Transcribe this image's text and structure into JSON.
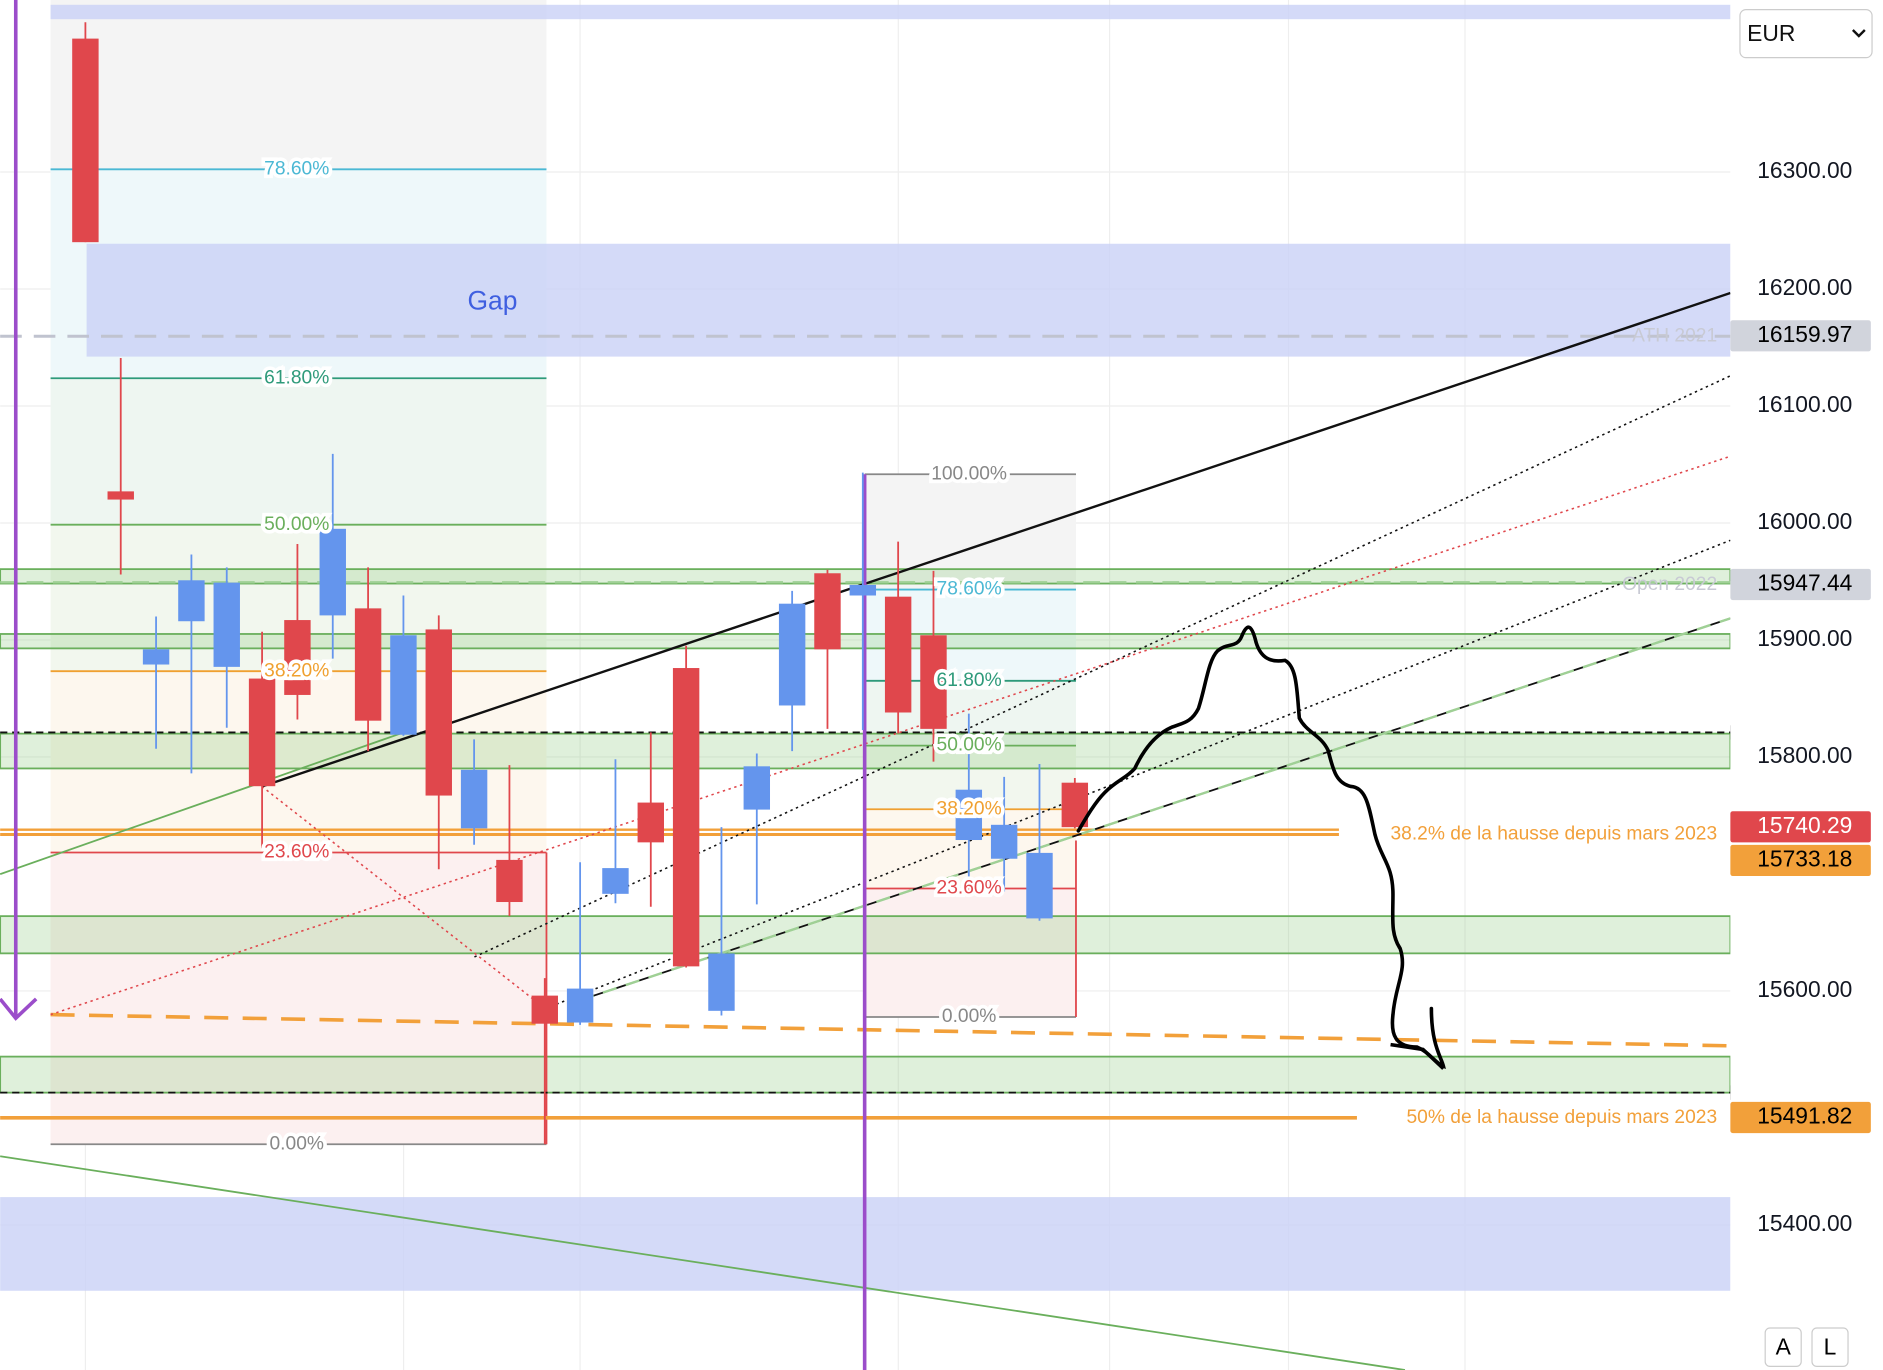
{
  "chart_data": {
    "type": "candlestick",
    "ylim": [
      15276,
      16447
    ],
    "yticks": [
      {
        "value": 16300,
        "label": "16300.00"
      },
      {
        "value": 16200,
        "label": "16200.00"
      },
      {
        "value": 16100,
        "label": "16100.00"
      },
      {
        "value": 16000,
        "label": "16000.00"
      },
      {
        "value": 15900,
        "label": "15900.00"
      },
      {
        "value": 15800,
        "label": "15800.00"
      },
      {
        "value": 15600,
        "label": "15600.00"
      },
      {
        "value": 15400,
        "label": "15400.00"
      }
    ],
    "grid": true,
    "up_color": "#6495ed",
    "down_color": "#e0474c",
    "open": [
      16414,
      16027,
      15879,
      15916,
      15877,
      15867,
      15917,
      15921,
      15927,
      15819,
      15909,
      15739,
      15712,
      15596,
      15573,
      15683,
      15761,
      15876,
      15583,
      15755,
      15844,
      15957,
      15938,
      15937,
      15904,
      15729,
      15713,
      15662,
      15778
    ],
    "high": [
      16428,
      16141,
      15920,
      15973,
      15962,
      15907,
      15982,
      16059,
      15962,
      15938,
      15921,
      15815,
      15793,
      15611,
      15710,
      15798,
      15821,
      15895,
      15740,
      15803,
      15942,
      15960,
      16043,
      15984,
      15959,
      15837,
      15783,
      15794,
      15782
    ],
    "low": [
      16240,
      15956,
      15807,
      15786,
      15825,
      15722,
      15832,
      15884,
      15805,
      15818,
      15704,
      15725,
      15664,
      15469,
      15571,
      15675,
      15672,
      15620,
      15579,
      15674,
      15805,
      15824,
      15823,
      15820,
      15796,
      15692,
      15685,
      15660,
      15739
    ],
    "close": [
      16240,
      16020,
      15892,
      15951,
      15949,
      15775,
      15853,
      15995,
      15831,
      15904,
      15767,
      15789,
      15676,
      15572,
      15602,
      15705,
      15727,
      15621,
      15632,
      15792,
      15931,
      15892,
      15947,
      15838,
      15824,
      15772,
      15742,
      15718,
      15740
    ],
    "price_tags": [
      {
        "value": 16159.97,
        "color": "#d1d4dc",
        "text_color": "#000000"
      },
      {
        "value": 15947.44,
        "color": "#d1d4dc",
        "text_color": "#000000"
      },
      {
        "value": 15740.29,
        "color": "#e0474c",
        "text_color": "#ffffff"
      },
      {
        "value": 15733.18,
        "color": "#f2a03a",
        "text_color": "#000000"
      },
      {
        "value": 15491.82,
        "color": "#f2a03a",
        "text_color": "#000000"
      }
    ]
  },
  "annotations": {
    "gap": "Gap",
    "ath": "ATH 2021",
    "open_2022": "Open 2022",
    "level_382": "38.2% de la hausse depuis mars 2023",
    "level_50": "50% de la hausse depuis mars 2023",
    "fib_left": [
      "78.60%",
      "61.80%",
      "50.00%",
      "38.20%",
      "23.60%",
      "0.00%"
    ],
    "fib_right": [
      "100.00%",
      "78.60%",
      "61.80%",
      "50.00%",
      "38.20%",
      "23.60%",
      "0.00%"
    ]
  },
  "controls": {
    "currency": "EUR",
    "buttons": [
      "A",
      "L"
    ]
  }
}
